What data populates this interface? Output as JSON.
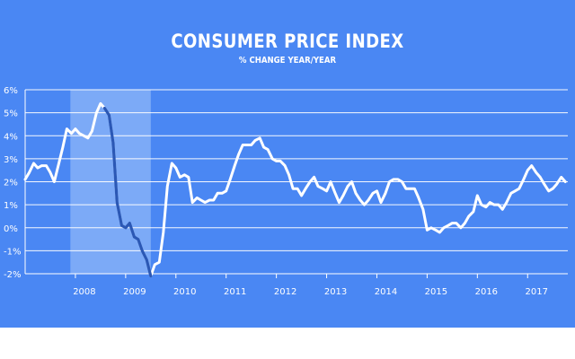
{
  "chart_data": {
    "type": "line",
    "title": "CONSUMER PRICE INDEX",
    "subtitle": "% CHANGE YEAR/YEAR",
    "xlabel": "",
    "ylabel": "",
    "ylim": [
      -2,
      6
    ],
    "xlim": [
      2007.0,
      2017.8
    ],
    "y_ticks": [
      "6%",
      "5%",
      "4%",
      "3%",
      "2%",
      "1%",
      "0%",
      "-1%",
      "-2%"
    ],
    "x_ticks": [
      {
        "label": "2008",
        "x": 2008.0
      },
      {
        "label": "2009",
        "x": 2009.0
      },
      {
        "label": "2010",
        "x": 2010.0
      },
      {
        "label": "2011",
        "x": 2011.0
      },
      {
        "label": "2012",
        "x": 2012.0
      },
      {
        "label": "2013",
        "x": 2013.0
      },
      {
        "label": "2014",
        "x": 2014.0
      },
      {
        "label": "2015",
        "x": 2015.0
      },
      {
        "label": "2016",
        "x": 2016.0
      },
      {
        "label": "2017",
        "x": 2017.0
      }
    ],
    "highlight_range": [
      2007.9,
      2009.5
    ],
    "colors": {
      "background": "#4a87f3",
      "highlight": "#8db6f8",
      "line": "#ffffff",
      "recession_line": "#2b58b5"
    },
    "series": [
      {
        "name": "CPI % change year/year",
        "x": [
          2007.0,
          2007.08,
          2007.17,
          2007.25,
          2007.33,
          2007.42,
          2007.5,
          2007.58,
          2007.67,
          2007.75,
          2007.83,
          2007.92,
          2008.0,
          2008.08,
          2008.17,
          2008.25,
          2008.33,
          2008.42,
          2008.5,
          2008.58,
          2008.67,
          2008.75,
          2008.83,
          2008.92,
          2009.0,
          2009.08,
          2009.17,
          2009.25,
          2009.33,
          2009.42,
          2009.5,
          2009.58,
          2009.67,
          2009.75,
          2009.83,
          2009.92,
          2010.0,
          2010.08,
          2010.17,
          2010.25,
          2010.33,
          2010.42,
          2010.5,
          2010.58,
          2010.67,
          2010.75,
          2010.83,
          2010.92,
          2011.0,
          2011.08,
          2011.17,
          2011.25,
          2011.33,
          2011.42,
          2011.5,
          2011.58,
          2011.67,
          2011.75,
          2011.83,
          2011.92,
          2012.0,
          2012.08,
          2012.17,
          2012.25,
          2012.33,
          2012.42,
          2012.5,
          2012.58,
          2012.67,
          2012.75,
          2012.83,
          2012.92,
          2013.0,
          2013.08,
          2013.17,
          2013.25,
          2013.33,
          2013.42,
          2013.5,
          2013.58,
          2013.67,
          2013.75,
          2013.83,
          2013.92,
          2014.0,
          2014.08,
          2014.17,
          2014.25,
          2014.33,
          2014.42,
          2014.5,
          2014.58,
          2014.67,
          2014.75,
          2014.83,
          2014.92,
          2015.0,
          2015.08,
          2015.17,
          2015.25,
          2015.33,
          2015.42,
          2015.5,
          2015.58,
          2015.67,
          2015.75,
          2015.83,
          2015.92,
          2016.0,
          2016.08,
          2016.17,
          2016.25,
          2016.33,
          2016.42,
          2016.5,
          2016.58,
          2016.67,
          2016.75,
          2016.83,
          2016.92,
          2017.0,
          2017.08,
          2017.17,
          2017.25,
          2017.33,
          2017.42,
          2017.5,
          2017.58,
          2017.67,
          2017.75
        ],
        "values": [
          2.1,
          2.4,
          2.8,
          2.6,
          2.7,
          2.7,
          2.4,
          2.0,
          2.8,
          3.5,
          4.3,
          4.1,
          4.3,
          4.1,
          4.0,
          3.9,
          4.2,
          5.0,
          5.4,
          5.2,
          4.9,
          3.7,
          1.1,
          0.1,
          0.0,
          0.2,
          -0.4,
          -0.5,
          -1.0,
          -1.4,
          -2.1,
          -1.6,
          -1.5,
          -0.2,
          1.8,
          2.8,
          2.6,
          2.2,
          2.3,
          2.2,
          1.1,
          1.3,
          1.2,
          1.1,
          1.2,
          1.2,
          1.5,
          1.5,
          1.6,
          2.1,
          2.7,
          3.2,
          3.6,
          3.6,
          3.6,
          3.8,
          3.9,
          3.5,
          3.4,
          3.0,
          2.9,
          2.9,
          2.7,
          2.3,
          1.7,
          1.7,
          1.4,
          1.7,
          2.0,
          2.2,
          1.8,
          1.7,
          1.6,
          2.0,
          1.5,
          1.1,
          1.4,
          1.8,
          2.0,
          1.5,
          1.2,
          1.0,
          1.2,
          1.5,
          1.6,
          1.1,
          1.5,
          2.0,
          2.1,
          2.1,
          2.0,
          1.7,
          1.7,
          1.7,
          1.3,
          0.8,
          -0.1,
          0.0,
          -0.1,
          -0.2,
          0.0,
          0.1,
          0.2,
          0.2,
          0.0,
          0.2,
          0.5,
          0.7,
          1.4,
          1.0,
          0.9,
          1.1,
          1.0,
          1.0,
          0.8,
          1.1,
          1.5,
          1.6,
          1.7,
          2.1,
          2.5,
          2.7,
          2.4,
          2.2,
          1.9,
          1.6,
          1.7,
          1.9,
          2.2,
          2.0
        ]
      }
    ]
  }
}
